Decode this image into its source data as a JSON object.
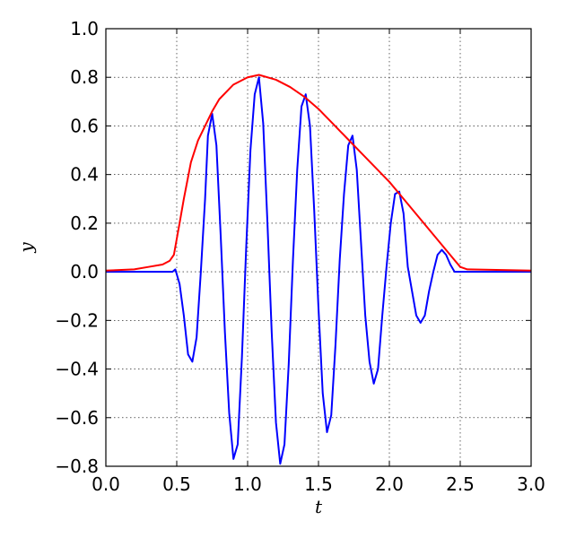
{
  "chart_data": {
    "type": "line",
    "xlabel": "t",
    "ylabel": "y",
    "xlim": [
      0,
      3
    ],
    "ylim": [
      -0.8,
      1.0
    ],
    "xticks": [
      {
        "value": 0,
        "label": "0.0"
      },
      {
        "value": 0.5,
        "label": "0.5"
      },
      {
        "value": 1,
        "label": "1.0"
      },
      {
        "value": 1.5,
        "label": "1.5"
      },
      {
        "value": 2,
        "label": "2.0"
      },
      {
        "value": 2.5,
        "label": "2.5"
      },
      {
        "value": 3,
        "label": "3.0"
      }
    ],
    "yticks": [
      {
        "value": -0.8,
        "label": "−0.8"
      },
      {
        "value": -0.6,
        "label": "−0.6"
      },
      {
        "value": -0.4,
        "label": "−0.4"
      },
      {
        "value": -0.2,
        "label": "−0.2"
      },
      {
        "value": 0,
        "label": "0.0"
      },
      {
        "value": 0.2,
        "label": "0.2"
      },
      {
        "value": 0.4,
        "label": "0.4"
      },
      {
        "value": 0.6,
        "label": "0.6"
      },
      {
        "value": 0.8,
        "label": "0.8"
      },
      {
        "value": 1.0,
        "label": "1.0"
      }
    ],
    "grid": true,
    "series": [
      {
        "color": "#0000ff",
        "x": [
          0,
          0.47,
          0.49,
          0.52,
          0.55,
          0.58,
          0.61,
          0.64,
          0.67,
          0.7,
          0.72,
          0.75,
          0.78,
          0.81,
          0.84,
          0.87,
          0.9,
          0.93,
          0.96,
          0.99,
          1.02,
          1.05,
          1.08,
          1.11,
          1.14,
          1.17,
          1.2,
          1.23,
          1.26,
          1.29,
          1.32,
          1.35,
          1.38,
          1.41,
          1.44,
          1.47,
          1.5,
          1.53,
          1.56,
          1.59,
          1.62,
          1.65,
          1.68,
          1.71,
          1.74,
          1.77,
          1.8,
          1.83,
          1.86,
          1.89,
          1.92,
          1.95,
          1.98,
          2.01,
          2.04,
          2.07,
          2.1,
          2.13,
          2.16,
          2.19,
          2.22,
          2.25,
          2.28,
          2.31,
          2.34,
          2.37,
          2.4,
          2.43,
          2.46,
          2.49,
          3.0
        ],
        "values": [
          0,
          0,
          0.01,
          -0.05,
          -0.18,
          -0.34,
          -0.37,
          -0.27,
          0.0,
          0.3,
          0.56,
          0.65,
          0.52,
          0.15,
          -0.25,
          -0.58,
          -0.77,
          -0.71,
          -0.35,
          0.1,
          0.5,
          0.73,
          0.8,
          0.61,
          0.2,
          -0.25,
          -0.62,
          -0.79,
          -0.71,
          -0.38,
          0.05,
          0.42,
          0.68,
          0.73,
          0.6,
          0.25,
          -0.15,
          -0.5,
          -0.66,
          -0.59,
          -0.3,
          0.05,
          0.32,
          0.52,
          0.56,
          0.42,
          0.12,
          -0.18,
          -0.37,
          -0.46,
          -0.4,
          -0.18,
          0.02,
          0.2,
          0.32,
          0.33,
          0.24,
          0.02,
          -0.08,
          -0.18,
          -0.21,
          -0.18,
          -0.08,
          0.0,
          0.07,
          0.09,
          0.07,
          0.03,
          0.0,
          0.0,
          0.0
        ]
      },
      {
        "color": "#ff0000",
        "x": [
          0,
          0.2,
          0.3,
          0.4,
          0.45,
          0.48,
          0.52,
          0.55,
          0.6,
          0.65,
          0.7,
          0.75,
          0.8,
          0.9,
          1.0,
          1.08,
          1.2,
          1.3,
          1.4,
          1.5,
          1.6,
          1.7,
          1.8,
          1.9,
          2.0,
          2.1,
          2.2,
          2.3,
          2.4,
          2.5,
          2.55,
          3.0
        ],
        "values": [
          0.005,
          0.01,
          0.02,
          0.03,
          0.045,
          0.07,
          0.2,
          0.3,
          0.45,
          0.54,
          0.6,
          0.66,
          0.71,
          0.77,
          0.8,
          0.81,
          0.79,
          0.76,
          0.72,
          0.67,
          0.61,
          0.55,
          0.49,
          0.43,
          0.37,
          0.3,
          0.23,
          0.16,
          0.09,
          0.02,
          0.01,
          0.005
        ]
      }
    ]
  }
}
